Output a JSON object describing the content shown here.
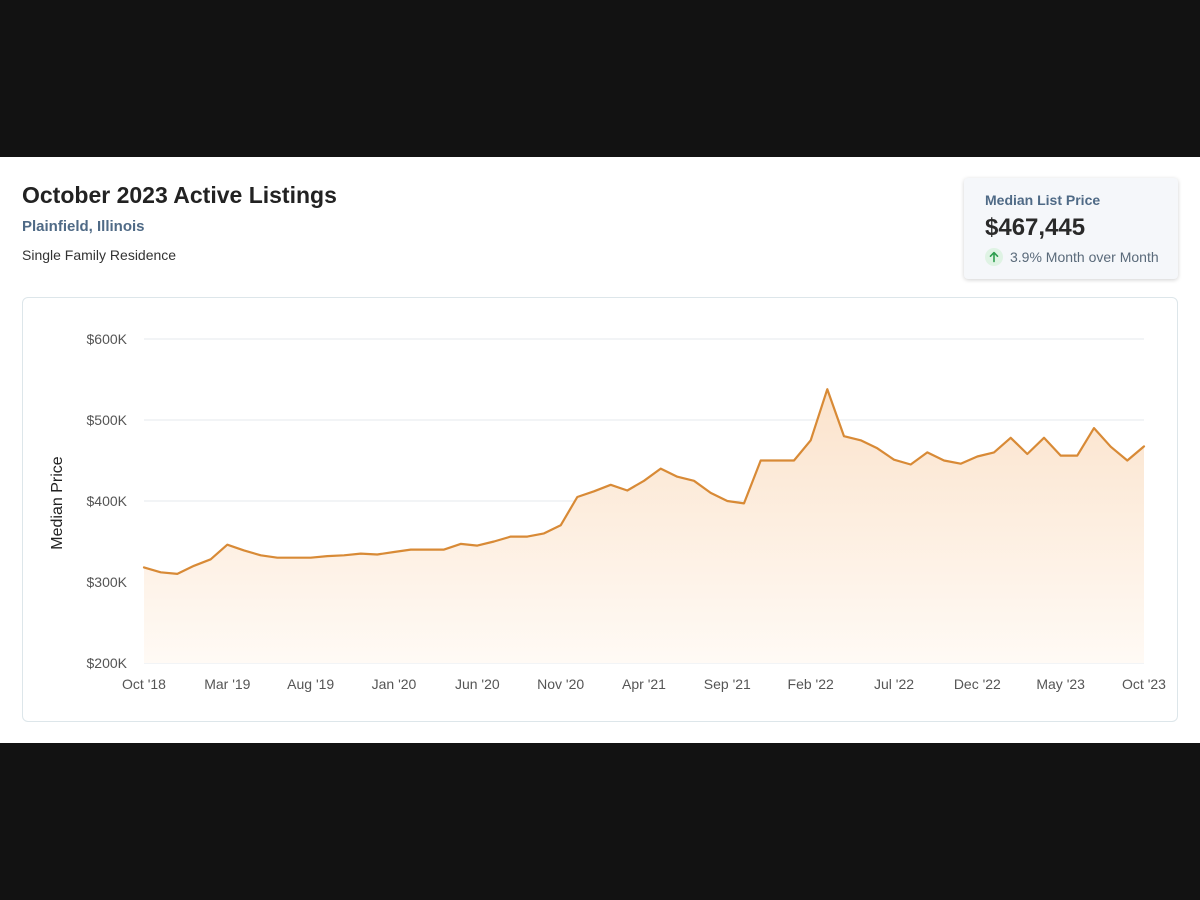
{
  "header": {
    "title": "October 2023 Active Listings",
    "location": "Plainfield, Illinois",
    "property_type": "Single Family Residence"
  },
  "stat_card": {
    "label": "Median List Price",
    "value": "$467,445",
    "change": "3.9% Month over Month",
    "change_icon": "arrow-up-icon",
    "change_color": "#2e9e4f"
  },
  "colors": {
    "line": "#d88a36",
    "fill_top": "#fbe3cc",
    "fill_bottom": "#fffaf5",
    "grid": "#e6eaee"
  },
  "chart_data": {
    "type": "area",
    "title": "",
    "xlabel": "",
    "ylabel": "Median Price",
    "ylim": [
      200000,
      600000
    ],
    "yticks": [
      200000,
      300000,
      400000,
      500000,
      600000
    ],
    "ytick_labels": [
      "$200K",
      "$300K",
      "$400K",
      "$500K",
      "$600K"
    ],
    "x": [
      "Oct '18",
      "Nov '18",
      "Dec '18",
      "Jan '19",
      "Feb '19",
      "Mar '19",
      "Apr '19",
      "May '19",
      "Jun '19",
      "Jul '19",
      "Aug '19",
      "Sep '19",
      "Oct '19",
      "Nov '19",
      "Dec '19",
      "Jan '20",
      "Feb '20",
      "Mar '20",
      "Apr '20",
      "May '20",
      "Jun '20",
      "Jul '20",
      "Aug '20",
      "Sep '20",
      "Oct '20",
      "Nov '20",
      "Dec '20",
      "Jan '21",
      "Feb '21",
      "Mar '21",
      "Apr '21",
      "May '21",
      "Jun '21",
      "Jul '21",
      "Aug '21",
      "Sep '21",
      "Oct '21",
      "Nov '21",
      "Dec '21",
      "Jan '22",
      "Feb '22",
      "Mar '22",
      "Apr '22",
      "May '22",
      "Jun '22",
      "Jul '22",
      "Aug '22",
      "Sep '22",
      "Oct '22",
      "Nov '22",
      "Dec '22",
      "Jan '23",
      "Feb '23",
      "Mar '23",
      "Apr '23",
      "May '23",
      "Jun '23",
      "Jul '23",
      "Aug '23",
      "Sep '23",
      "Oct '23"
    ],
    "xtick_labels": [
      "Oct '18",
      "Mar '19",
      "Aug '19",
      "Jan '20",
      "Jun '20",
      "Nov '20",
      "Apr '21",
      "Sep '21",
      "Feb '22",
      "Jul '22",
      "Dec '22",
      "May '23",
      "Oct '23"
    ],
    "grid": true,
    "legend": "none",
    "series": [
      {
        "values": [
          318000,
          312000,
          310000,
          320000,
          328000,
          346000,
          339000,
          333000,
          330000,
          330000,
          330000,
          332000,
          333000,
          335000,
          334000,
          337000,
          340000,
          340000,
          340000,
          347000,
          345000,
          350000,
          356000,
          356000,
          360000,
          370000,
          405000,
          412000,
          420000,
          413000,
          425000,
          440000,
          430000,
          425000,
          410000,
          400000,
          397000,
          450000,
          450000,
          450000,
          475000,
          538000,
          480000,
          475000,
          465000,
          451000,
          445000,
          460000,
          450000,
          446000,
          455000,
          460000,
          478000,
          458000,
          478000,
          456000,
          456000,
          490000,
          467000,
          450000,
          467445
        ]
      }
    ]
  }
}
